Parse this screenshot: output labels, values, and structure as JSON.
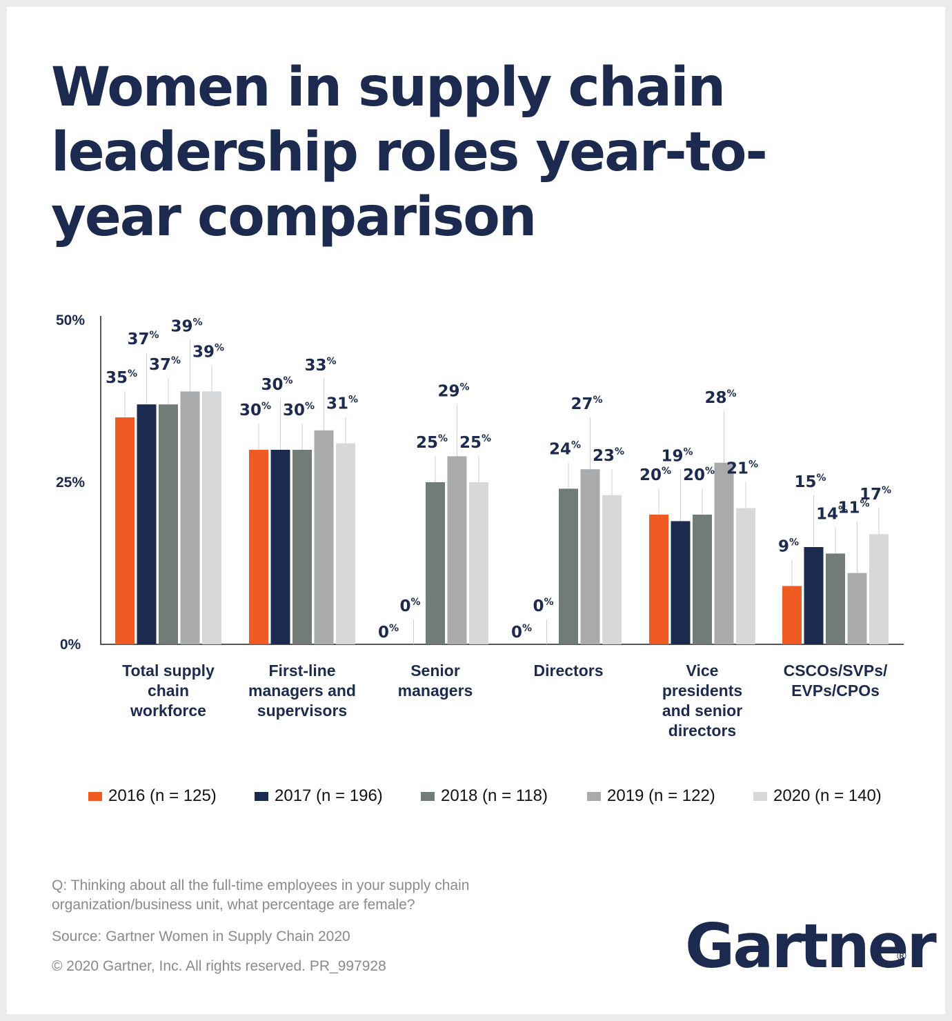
{
  "title": "Women in supply chain leadership roles year-to-year comparison",
  "chart_data": {
    "type": "bar",
    "categories": [
      "Total supply chain workforce",
      "First-line managers and supervisors",
      "Senior managers",
      "Directors",
      "Vice presidents and senior directors",
      "CSCOs/SVPs/ EVPs/CPOs"
    ],
    "category_lines": [
      [
        "Total supply",
        "chain",
        "workforce"
      ],
      [
        "First-line",
        "managers and",
        "supervisors"
      ],
      [
        "Senior",
        "managers"
      ],
      [
        "Directors"
      ],
      [
        "Vice",
        "presidents",
        "and senior",
        "directors"
      ],
      [
        "CSCOs/SVPs/",
        "EVPs/CPOs"
      ]
    ],
    "series": [
      {
        "name": "2016 (n = 125)",
        "color": "#f05a23",
        "values": [
          35,
          30,
          0,
          0,
          20,
          9
        ]
      },
      {
        "name": "2017 (n = 196)",
        "color": "#1b2a4e",
        "values": [
          37,
          30,
          0,
          0,
          19,
          15
        ]
      },
      {
        "name": "2018 (n = 118)",
        "color": "#717b78",
        "values": [
          37,
          30,
          25,
          24,
          20,
          14
        ]
      },
      {
        "name": "2019 (n = 122)",
        "color": "#a8aaab",
        "values": [
          39,
          33,
          29,
          27,
          28,
          11
        ]
      },
      {
        "name": "2020 (n = 140)",
        "color": "#d7d8da",
        "values": [
          39,
          31,
          25,
          23,
          21,
          17
        ]
      }
    ],
    "value_suffix": "%",
    "ylim": [
      0,
      50
    ],
    "y_ticks": [
      "0%",
      "25%",
      "50%"
    ],
    "xlabel": "",
    "ylabel": "",
    "grid": false,
    "legend_position": "bottom",
    "data_labels": true
  },
  "footnote": {
    "question": "Q: Thinking about all the full-time employees in your supply chain organization/business unit, what percentage are female?",
    "source": "Source: Gartner Women in Supply Chain 2020",
    "copyright": "© 2020 Gartner, Inc. All rights reserved. PR_997928"
  },
  "logo": {
    "text": "Gartner",
    "registered": "®"
  }
}
